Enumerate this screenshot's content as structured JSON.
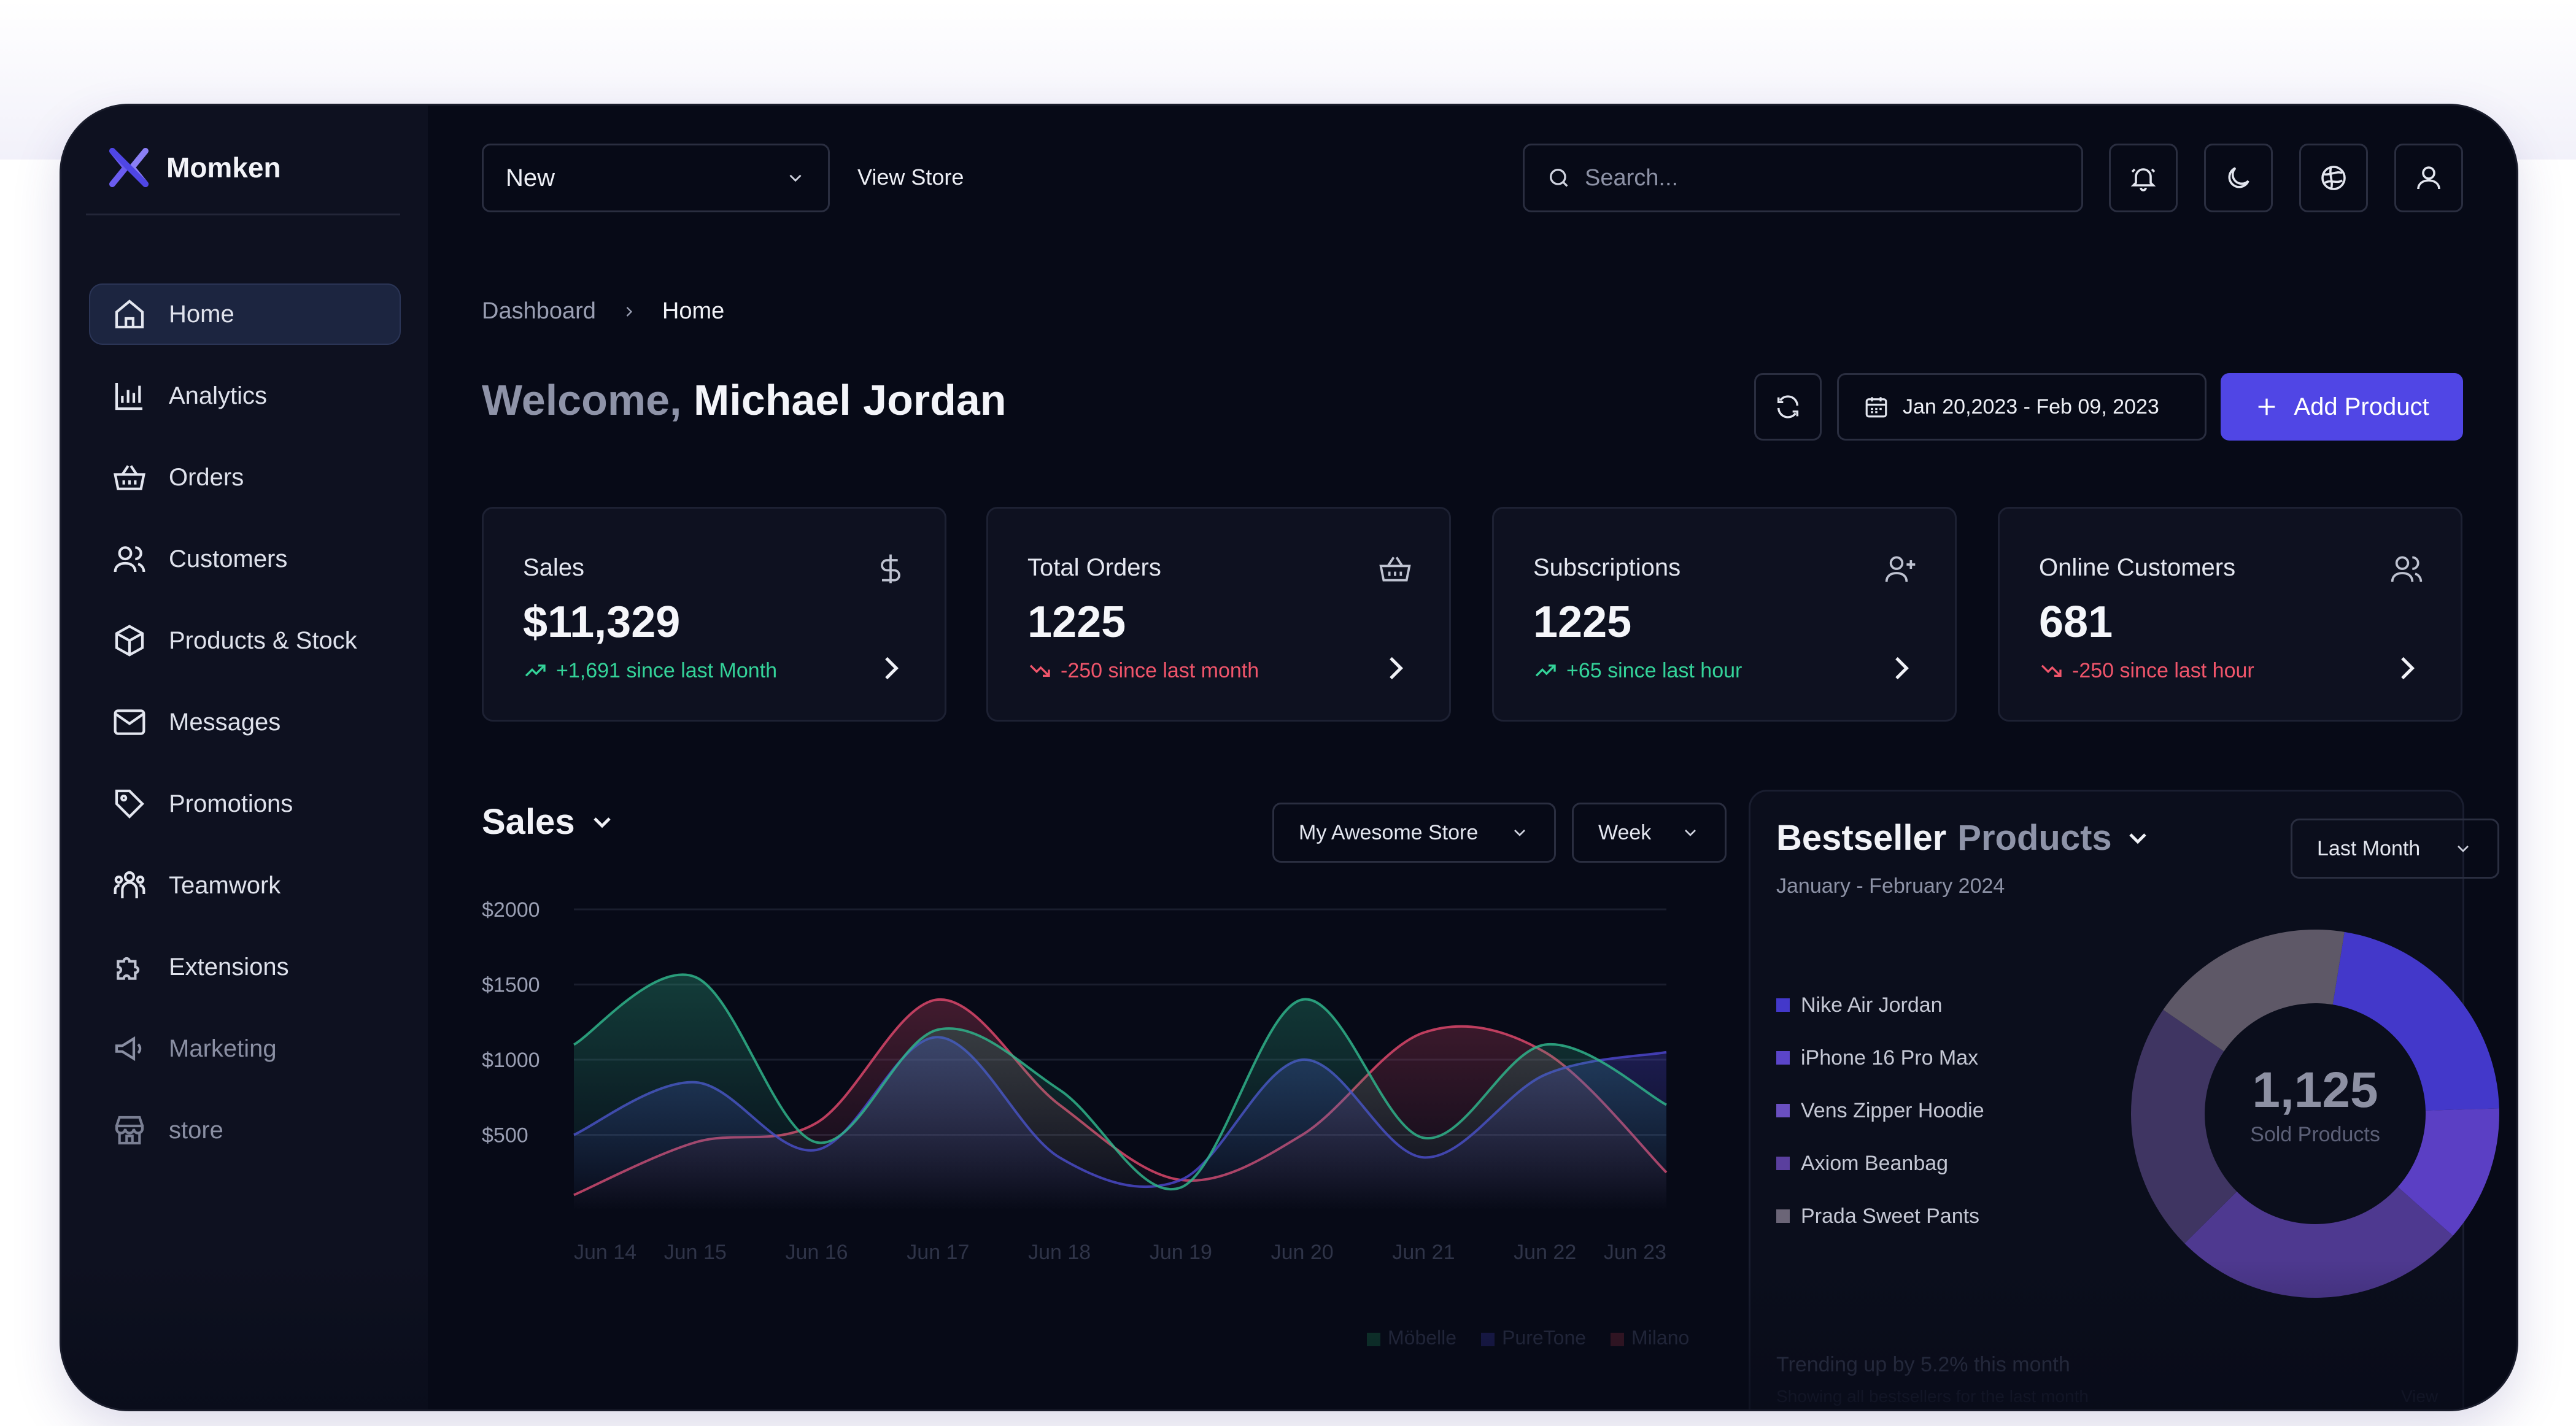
{
  "app": {
    "name": "Momken"
  },
  "sidebar": {
    "items": [
      {
        "label": "Home",
        "icon": "home-icon"
      },
      {
        "label": "Analytics",
        "icon": "analytics-icon"
      },
      {
        "label": "Orders",
        "icon": "basket-icon"
      },
      {
        "label": "Customers",
        "icon": "users-icon"
      },
      {
        "label": "Products & Stock",
        "icon": "box-icon"
      },
      {
        "label": "Messages",
        "icon": "mail-icon"
      },
      {
        "label": "Promotions",
        "icon": "tag-icon"
      },
      {
        "label": "Teamwork",
        "icon": "team-icon"
      },
      {
        "label": "Extensions",
        "icon": "puzzle-icon"
      },
      {
        "label": "Marketing",
        "icon": "megaphone-icon"
      },
      {
        "label": "store",
        "icon": "store-icon"
      }
    ]
  },
  "topbar": {
    "store_select": "New",
    "view_store": "View Store",
    "search_placeholder": "Search..."
  },
  "breadcrumb": {
    "parent": "Dashboard",
    "current": "Home"
  },
  "welcome": {
    "prefix": "Welcome,",
    "name": "Michael Jordan"
  },
  "actions": {
    "date_range": "Jan 20,2023 - Feb 09, 2023",
    "add_product": "Add Product"
  },
  "kpis": [
    {
      "title": "Sales",
      "value": "$11,329",
      "delta": "+1,691 since last Month",
      "trend": "up",
      "icon": "dollar-icon"
    },
    {
      "title": "Total Orders",
      "value": "1225",
      "delta": "-250 since last month",
      "trend": "down",
      "icon": "basket-icon"
    },
    {
      "title": "Subscriptions",
      "value": "1225",
      "delta": "+65 since last hour",
      "trend": "up",
      "icon": "user-plus-icon"
    },
    {
      "title": "Online Customers",
      "value": "681",
      "delta": "-250 since last hour",
      "trend": "down",
      "icon": "users-icon"
    }
  ],
  "sales": {
    "title": "Sales",
    "store_filter": "My Awesome Store",
    "period_filter": "Week"
  },
  "chart_data": {
    "type": "area",
    "categories": [
      "Jun 14",
      "Jun 15",
      "Jun 16",
      "Jun 17",
      "Jun 18",
      "Jun 19",
      "Jun 20",
      "Jun 21",
      "Jun 22",
      "Jun 23"
    ],
    "y_ticks": [
      "$2000",
      "$1500",
      "$1000",
      "$500"
    ],
    "ylim": [
      0,
      2000
    ],
    "series": [
      {
        "name": "Möbelle",
        "color": "#2fb38a",
        "values": [
          1100,
          1550,
          450,
          1200,
          800,
          150,
          1400,
          480,
          1100,
          700
        ]
      },
      {
        "name": "PureTone",
        "color": "#4a44c8",
        "values": [
          500,
          850,
          400,
          1150,
          350,
          200,
          1000,
          350,
          900,
          1050
        ]
      },
      {
        "name": "Milano",
        "color": "#d9476a",
        "values": [
          100,
          450,
          580,
          1400,
          700,
          200,
          500,
          1180,
          1050,
          250
        ]
      }
    ],
    "grid": true,
    "legend": "bottom-right"
  },
  "bestseller": {
    "title_a": "Bestseller",
    "title_b": "Products",
    "subtitle": "January - February 2024",
    "filter": "Last Month",
    "items": [
      {
        "name": "Nike Air Jordan",
        "color": "#4338ca"
      },
      {
        "name": "iPhone 16 Pro Max",
        "color": "#5b45c9"
      },
      {
        "name": "Vens Zipper Hoodie",
        "color": "#6a4fc0"
      },
      {
        "name": "Axiom Beanbag",
        "color": "#5a3f9e"
      },
      {
        "name": "Prada Sweet Pants",
        "color": "#6b6577"
      }
    ],
    "donut_values": [
      22,
      12,
      26,
      22,
      18
    ],
    "donut_colors": [
      "#4338ca",
      "#5b3fc4",
      "#4e3990",
      "#3f3562",
      "#5e5867"
    ],
    "total": "1,125",
    "total_label": "Sold Products",
    "trend": "Trending up by 5.2% this month",
    "trend_sub": "Showing all bestsellers for the last month",
    "view_details": "View Details"
  }
}
